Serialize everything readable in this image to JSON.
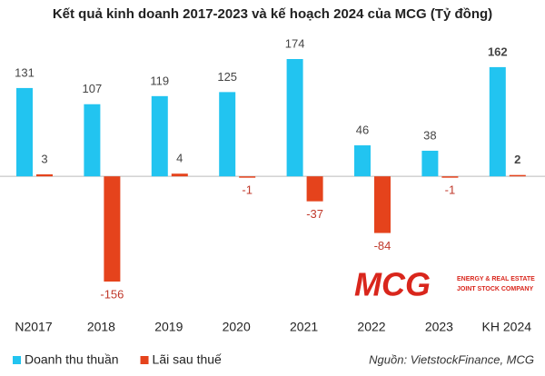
{
  "chart_data": {
    "type": "bar",
    "title": "Kết quả kinh doanh 2017-2023 và kế hoạch 2024 của MCG (Tỷ đồng)",
    "categories": [
      "N2017",
      "2018",
      "2019",
      "2020",
      "2021",
      "2022",
      "2023",
      "KH 2024"
    ],
    "series": [
      {
        "name": "Doanh thu thuần",
        "color": "#22c4f0",
        "values": [
          131,
          107,
          119,
          125,
          174,
          46,
          38,
          162
        ]
      },
      {
        "name": "Lãi sau thuế",
        "color": "#e5431c",
        "values": [
          3,
          -156,
          4,
          -1,
          -37,
          -84,
          -1,
          2
        ]
      }
    ],
    "source": "Nguồn: VietstockFinance, MCG",
    "logo": {
      "name": "MCG",
      "lines": [
        "ENERGY & REAL ESTATE",
        "JOINT STOCK COMPANY"
      ]
    }
  }
}
